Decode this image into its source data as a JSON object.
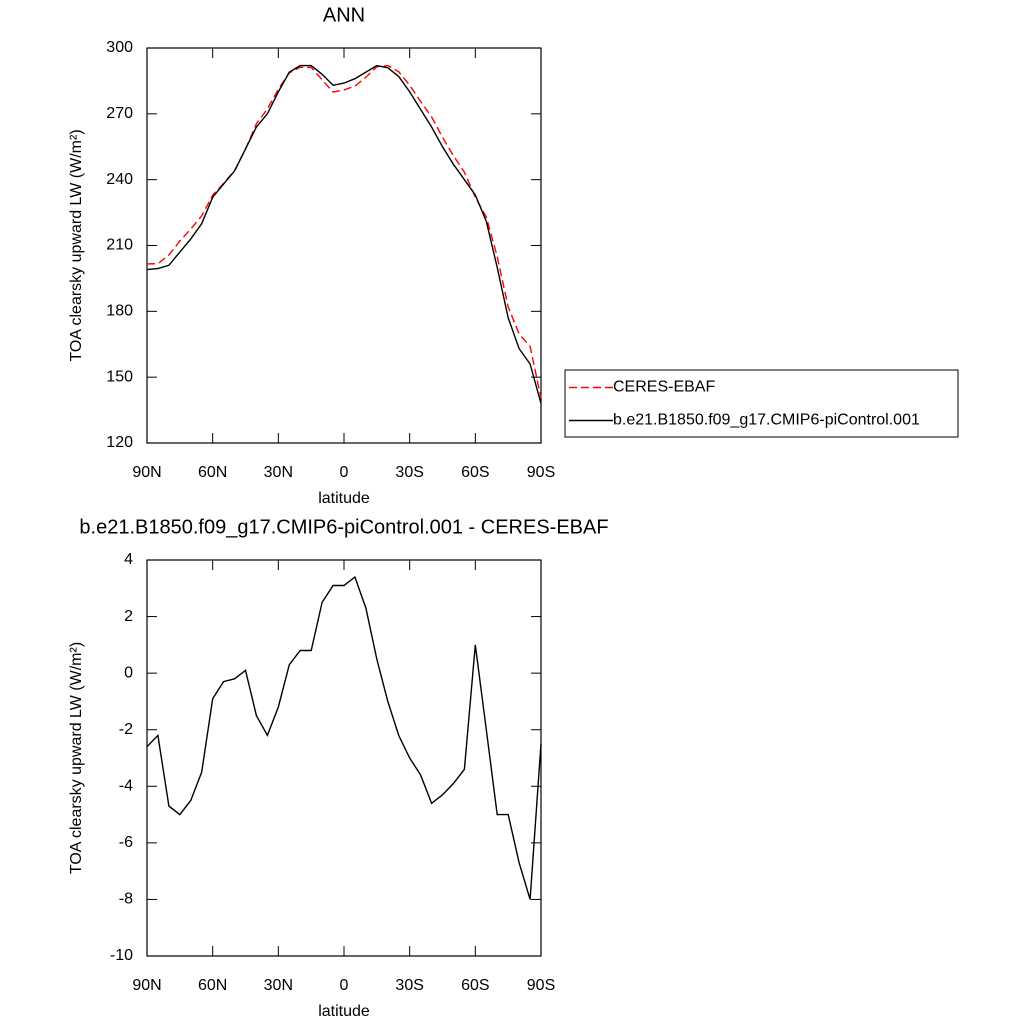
{
  "chart_data": [
    {
      "type": "line",
      "title": "ANN",
      "xlabel": "latitude",
      "ylabel": "TOA clearsky upward LW (W/m²)",
      "x": [
        90,
        85,
        80,
        75,
        70,
        65,
        60,
        55,
        50,
        45,
        40,
        35,
        30,
        25,
        20,
        15,
        10,
        5,
        0,
        -5,
        -10,
        -15,
        -20,
        -25,
        -30,
        -35,
        -40,
        -45,
        -50,
        -55,
        -60,
        -65,
        -70,
        -75,
        -80,
        -85,
        -90
      ],
      "xlim": [
        90,
        -90
      ],
      "xticks": [
        {
          "value": 90,
          "label": "90N"
        },
        {
          "value": 60,
          "label": "60N"
        },
        {
          "value": 30,
          "label": "30N"
        },
        0,
        {
          "value": -30,
          "label": "30S"
        },
        {
          "value": -60,
          "label": "60S"
        },
        {
          "value": -90,
          "label": "90S"
        }
      ],
      "ylim": [
        120,
        300
      ],
      "yticks": [
        120,
        150,
        180,
        210,
        240,
        270,
        300
      ],
      "series": [
        {
          "name": "CERES-EBAF",
          "color": "#ff0000",
          "dash": true,
          "values": [
            201.6,
            201.7,
            205.7,
            212,
            217.5,
            223.5,
            232.9,
            238.3,
            244.2,
            253.9,
            265.5,
            272.2,
            281.2,
            288.7,
            291.2,
            291.2,
            285.5,
            279.9,
            280.9,
            282.6,
            286.7,
            291.5,
            292,
            289.2,
            283,
            275.6,
            268.6,
            259.3,
            250.9,
            243.4,
            232,
            223,
            205,
            182,
            169.7,
            164,
            140.5
          ]
        },
        {
          "name": "b.e21.B1850.f09_g17.CMIP6-piControl.001",
          "color": "#000000",
          "dash": false,
          "values": [
            199,
            199.5,
            201,
            207,
            213,
            220,
            232,
            238,
            244,
            254,
            264,
            270,
            280,
            289,
            292,
            292,
            288,
            283,
            284,
            286,
            289,
            292,
            291,
            287,
            280,
            272,
            264,
            255,
            247,
            240,
            233,
            221,
            200,
            177,
            163,
            156,
            138
          ]
        }
      ]
    },
    {
      "type": "line",
      "title": "b.e21.B1850.f09_g17.CMIP6-piControl.001 - CERES-EBAF",
      "xlabel": "latitude",
      "ylabel": "TOA clearsky upward LW (W/m²)",
      "x": [
        90,
        85,
        80,
        75,
        70,
        65,
        60,
        55,
        50,
        45,
        40,
        35,
        30,
        25,
        20,
        15,
        10,
        5,
        0,
        -5,
        -10,
        -15,
        -20,
        -25,
        -30,
        -35,
        -40,
        -45,
        -50,
        -55,
        -60,
        -65,
        -70,
        -75,
        -80,
        -85,
        -90
      ],
      "xlim": [
        90,
        -90
      ],
      "xticks": [
        {
          "value": 90,
          "label": "90N"
        },
        {
          "value": 60,
          "label": "60N"
        },
        {
          "value": 30,
          "label": "30N"
        },
        0,
        {
          "value": -30,
          "label": "30S"
        },
        {
          "value": -60,
          "label": "60S"
        },
        {
          "value": -90,
          "label": "90S"
        }
      ],
      "ylim": [
        -10,
        4
      ],
      "yticks": [
        -10,
        -8,
        -6,
        -4,
        -2,
        0,
        2,
        4
      ],
      "series": [
        {
          "name": null,
          "color": "#000000",
          "dash": false,
          "values": [
            -2.6,
            -2.2,
            -4.7,
            -5,
            -4.5,
            -3.5,
            -0.9,
            -0.3,
            -0.2,
            0.1,
            -1.5,
            -2.2,
            -1.2,
            0.3,
            0.8,
            0.8,
            2.5,
            3.1,
            3.1,
            3.4,
            2.3,
            0.5,
            -1,
            -2.2,
            -3,
            -3.6,
            -4.6,
            -4.3,
            -3.9,
            -3.4,
            1,
            -2,
            -5,
            -5,
            -6.7,
            -8,
            -2.5
          ]
        }
      ]
    }
  ]
}
